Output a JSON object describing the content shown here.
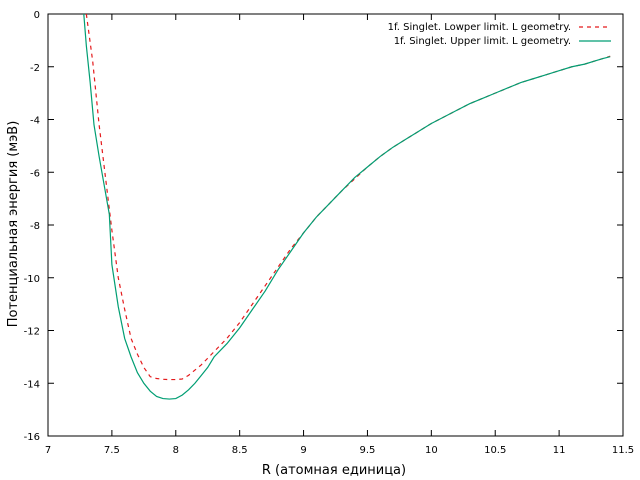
{
  "chart_data": {
    "type": "line",
    "title": "",
    "xlabel": "R (атомная единица)",
    "ylabel": "Потенциальная энергия (мэВ)",
    "xlim": [
      7,
      11.5
    ],
    "ylim": [
      -16,
      0
    ],
    "xticks": [
      7,
      7.5,
      8,
      8.5,
      9,
      9.5,
      10,
      10.5,
      11,
      11.5
    ],
    "xtick_labels": [
      "7",
      "7.5",
      "8",
      "8.5",
      "9",
      "9.5",
      "10",
      "10.5",
      "11",
      "11.5"
    ],
    "yticks": [
      -16,
      -14,
      -12,
      -10,
      -8,
      -6,
      -4,
      -2,
      0
    ],
    "ytick_labels": [
      "-16",
      "-14",
      "-12",
      "-10",
      "-8",
      "-6",
      "-4",
      "-2",
      "0"
    ],
    "grid": false,
    "legend_position": "top-right",
    "series": [
      {
        "name": "1f. Singlet. Lowper limit. L geometry.",
        "color": "#e41a1c",
        "dash": "dashed",
        "x": [
          7.3,
          7.35,
          7.4,
          7.45,
          7.5,
          7.55,
          7.6,
          7.65,
          7.7,
          7.75,
          7.8,
          7.85,
          7.9,
          7.95,
          8.0,
          8.05,
          8.1,
          8.2,
          8.3,
          8.4,
          8.5,
          8.6,
          8.7,
          8.8,
          8.9,
          9.0,
          9.1,
          9.2,
          9.3,
          9.4,
          9.5,
          9.6,
          9.7,
          9.8,
          9.9,
          10.0,
          10.1,
          10.2,
          10.3,
          10.4,
          10.5,
          10.6,
          10.7,
          10.8,
          10.9,
          11.0,
          11.1,
          11.2,
          11.3,
          11.4
        ],
        "y": [
          0.0,
          -1.8,
          -4.2,
          -6.2,
          -8.2,
          -10.0,
          -11.2,
          -12.3,
          -12.9,
          -13.4,
          -13.75,
          -13.82,
          -13.85,
          -13.86,
          -13.86,
          -13.84,
          -13.7,
          -13.3,
          -12.8,
          -12.3,
          -11.7,
          -11.0,
          -10.3,
          -9.6,
          -8.9,
          -8.3,
          -7.7,
          -7.2,
          -6.7,
          -6.25,
          -5.8,
          -5.4,
          -5.05,
          -4.75,
          -4.45,
          -4.15,
          -3.9,
          -3.65,
          -3.4,
          -3.2,
          -3.0,
          -2.8,
          -2.6,
          -2.45,
          -2.3,
          -2.15,
          -2.0,
          -1.9,
          -1.75,
          -1.6
        ]
      },
      {
        "name": "1f. Singlet. Upper limit. L geometry.",
        "color": "#009e73",
        "dash": "solid",
        "x": [
          7.28,
          7.3,
          7.33,
          7.36,
          7.4,
          7.44,
          7.48,
          7.5,
          7.55,
          7.6,
          7.65,
          7.7,
          7.75,
          7.8,
          7.85,
          7.9,
          7.95,
          8.0,
          8.05,
          8.1,
          8.15,
          8.2,
          8.25,
          8.3,
          8.4,
          8.5,
          8.6,
          8.7,
          8.8,
          8.9,
          9.0,
          9.1,
          9.2,
          9.3,
          9.4,
          9.5,
          9.6,
          9.7,
          9.8,
          9.9,
          10.0,
          10.1,
          10.2,
          10.3,
          10.4,
          10.5,
          10.6,
          10.7,
          10.8,
          10.9,
          11.0,
          11.1,
          11.2,
          11.3,
          11.35,
          11.4
        ],
        "y": [
          0.0,
          -1.2,
          -2.6,
          -4.2,
          -5.4,
          -6.5,
          -7.6,
          -9.5,
          -11.1,
          -12.3,
          -13.0,
          -13.6,
          -14.0,
          -14.3,
          -14.5,
          -14.58,
          -14.6,
          -14.58,
          -14.45,
          -14.25,
          -14.0,
          -13.7,
          -13.4,
          -13.0,
          -12.5,
          -11.9,
          -11.2,
          -10.5,
          -9.7,
          -9.0,
          -8.3,
          -7.7,
          -7.2,
          -6.7,
          -6.2,
          -5.8,
          -5.4,
          -5.05,
          -4.75,
          -4.45,
          -4.15,
          -3.9,
          -3.65,
          -3.4,
          -3.2,
          -3.0,
          -2.8,
          -2.6,
          -2.45,
          -2.3,
          -2.15,
          -2.0,
          -1.9,
          -1.75,
          -1.68,
          -1.62
        ]
      }
    ]
  }
}
